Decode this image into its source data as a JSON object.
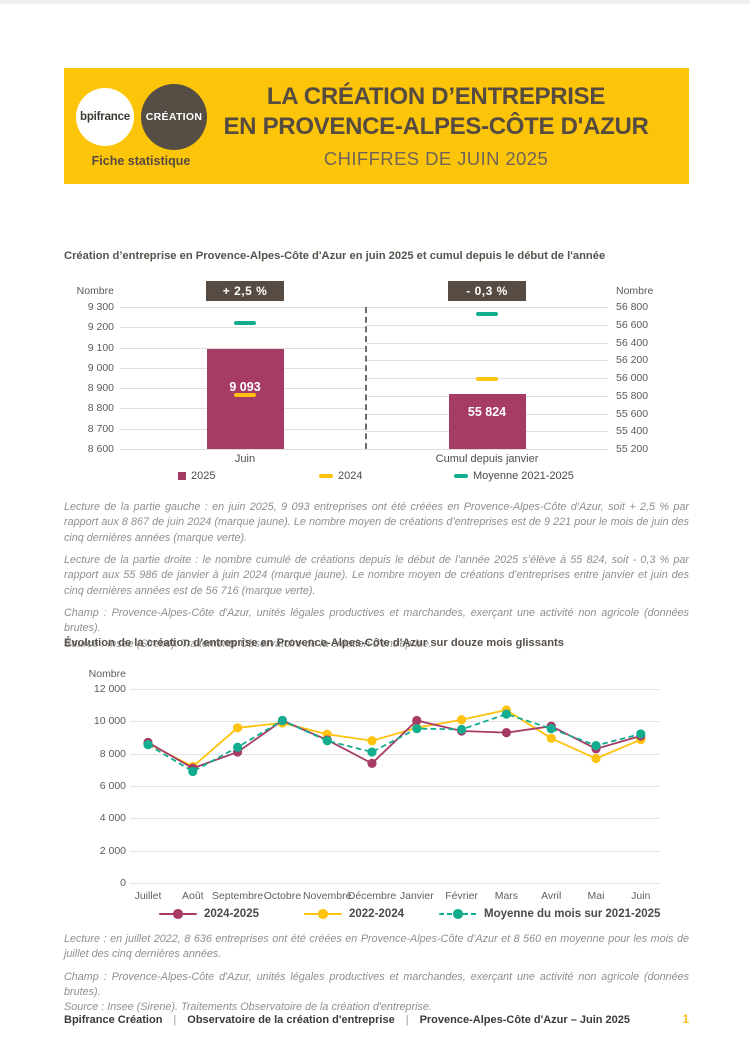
{
  "colors": {
    "brand_yellow": "#FCC50A",
    "dark_brown": "#564C44",
    "maroon": "#A63B66",
    "yellow": "#FFC20E",
    "teal": "#12AD8E",
    "page_number_yellow": "#FBB917"
  },
  "header": {
    "logo_primary": "bpifrance",
    "logo_secondary": "CRÉATION",
    "tagline": "Fiche statistique",
    "title_line1": "LA CRÉATION D’ENTREPRISE",
    "title_line2": "EN PROVENCE-ALPES-CÔTE D'AZUR",
    "subtitle": "CHIFFRES DE JUIN 2025"
  },
  "chart_data": [
    {
      "type": "bar",
      "title": "Création d’entreprise en Provence-Alpes-Côte d'Azur en juin 2025 et cumul depuis le début de l'année",
      "ylabel_left": "Nombre",
      "ylabel_right": "Nombre",
      "left_axis": {
        "min": 8600,
        "max": 9300,
        "step": 100
      },
      "right_axis": {
        "min": 55200,
        "max": 56800,
        "step": 200
      },
      "groups": [
        {
          "category": "Juin",
          "badge": "+ 2,5 %",
          "bar_2025": 9093,
          "bar_label": "9 093",
          "marker_2024": 8867,
          "marker_moyenne_2021_2025": 9221
        },
        {
          "category": "Cumul depuis janvier",
          "badge": "- 0,3 %",
          "bar_2025": 55824,
          "bar_label": "55 824",
          "marker_2024": 55986,
          "marker_moyenne_2021_2025": 56716
        }
      ],
      "legend": [
        "2025",
        "2024",
        "Moyenne 2021-2025"
      ]
    },
    {
      "type": "line",
      "title": "Évolution de la création d’entreprise en Provence-Alpes-Côte d'Azur sur douze mois glissants",
      "ylabel": "Nombre",
      "ylim": [
        0,
        12000
      ],
      "ytick_step": 2000,
      "categories": [
        "Juillet",
        "Août",
        "Septembre",
        "Octobre",
        "Novembre",
        "Décembre",
        "Janvier",
        "Février",
        "Mars",
        "Avril",
        "Mai",
        "Juin"
      ],
      "series": [
        {
          "name": "2024-2025",
          "color_key": "maroon",
          "style": "solid",
          "values": [
            8700,
            7100,
            8100,
            10050,
            8850,
            7400,
            10050,
            9400,
            9300,
            9700,
            8300,
            9093
          ]
        },
        {
          "name": "2022-2024",
          "color_key": "yellow",
          "style": "solid",
          "values": [
            8636,
            7200,
            9600,
            9900,
            9200,
            8800,
            9600,
            10100,
            10700,
            8950,
            7700,
            8867
          ]
        },
        {
          "name": "Moyenne du mois sur 2021-2025",
          "color_key": "teal",
          "style": "dashed",
          "values": [
            8560,
            6900,
            8400,
            10050,
            8800,
            8100,
            9550,
            9500,
            10450,
            9550,
            8500,
            9221
          ]
        }
      ]
    }
  ],
  "notes1": [
    "Lecture de la partie gauche : en juin 2025, 9 093 entreprises ont été créées en Provence-Alpes-Côte d’Azur, soit + 2,5 % par rapport aux 8 867 de juin 2024 (marque jaune). Le nombre moyen de créations d’entreprises est de 9 221 pour le mois de juin des cinq dernières années (marque verte).",
    "Lecture de la partie droite : le nombre cumulé de créations depuis le début de l’année 2025 s’élève à 55 824, soit - 0,3 % par rapport aux 55 986 de janvier à juin 2024 (marque jaune). Le nombre moyen de créations d’entreprises entre janvier et juin des cinq dernières années est de 56 716 (marque verte).",
    "Champ : Provence-Alpes-Côte d'Azur, unités légales productives et marchandes, exerçant une activité non agricole (données brutes).",
    "Source : Insee (Sirene). Traitements Observatoire de la création d'entreprise."
  ],
  "notes2": [
    "Lecture : en juillet 2022, 8 636 entreprises ont été créées en Provence-Alpes-Côte d’Azur et 8 560 en moyenne pour les mois de juillet des cinq dernières années.",
    "Champ : Provence-Alpes-Côte d'Azur, unités légales productives et marchandes, exerçant une activité non agricole (données brutes).",
    "Source : Insee (Sirene). Traitements Observatoire de la création d'entreprise."
  ],
  "footer": {
    "segments": [
      "Bpifrance Création",
      "Observatoire de la création d'entreprise",
      "Provence-Alpes-Côte d'Azur – Juin 2025"
    ],
    "page": "1"
  }
}
